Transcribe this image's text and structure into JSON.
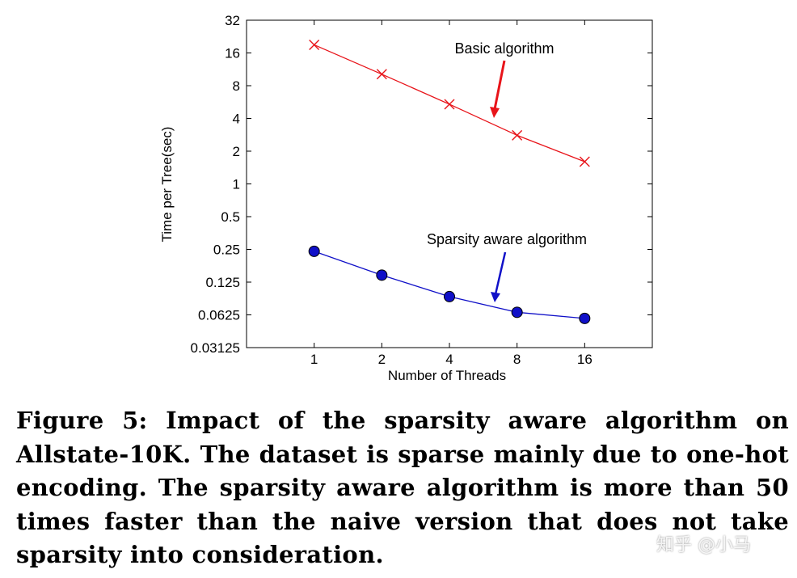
{
  "chart_data": {
    "type": "line",
    "xscale": "log2",
    "yscale": "log2",
    "xlabel": "Number of Threads",
    "ylabel": "Time per Tree(sec)",
    "x": [
      1,
      2,
      4,
      8,
      16
    ],
    "x_tick_labels": [
      "1",
      "2",
      "4",
      "8",
      "16"
    ],
    "y_ticks": [
      0.03125,
      0.0625,
      0.125,
      0.25,
      0.5,
      1,
      2,
      4,
      8,
      16,
      32
    ],
    "y_tick_labels": [
      "0.03125",
      "0.0625",
      "0.125",
      "0.25",
      "0.5",
      "1",
      "2",
      "4",
      "8",
      "16",
      "32"
    ],
    "xlim": [
      0.5,
      32
    ],
    "ylim": [
      0.03125,
      32
    ],
    "grid": false,
    "series": [
      {
        "name": "Basic algorithm",
        "color": "#e8141a",
        "marker": "x",
        "values": [
          19,
          10.2,
          5.4,
          2.8,
          1.6
        ]
      },
      {
        "name": "Sparsity aware algorithm",
        "color": "#1010c8",
        "marker": "circle",
        "values": [
          0.24,
          0.145,
          0.092,
          0.066,
          0.058
        ]
      }
    ],
    "annotations": [
      {
        "text": "Basic algorithm",
        "series": 0
      },
      {
        "text": "Sparsity aware algorithm",
        "series": 1
      }
    ]
  },
  "caption": "Figure 5: Impact of the sparsity aware algorithm on Allstate-10K. The dataset is sparse mainly due to one-hot encoding. The sparsity aware algorithm is more than 50 times faster than the naive version that does not take sparsity into consideration.",
  "watermark": "知乎 @小马"
}
